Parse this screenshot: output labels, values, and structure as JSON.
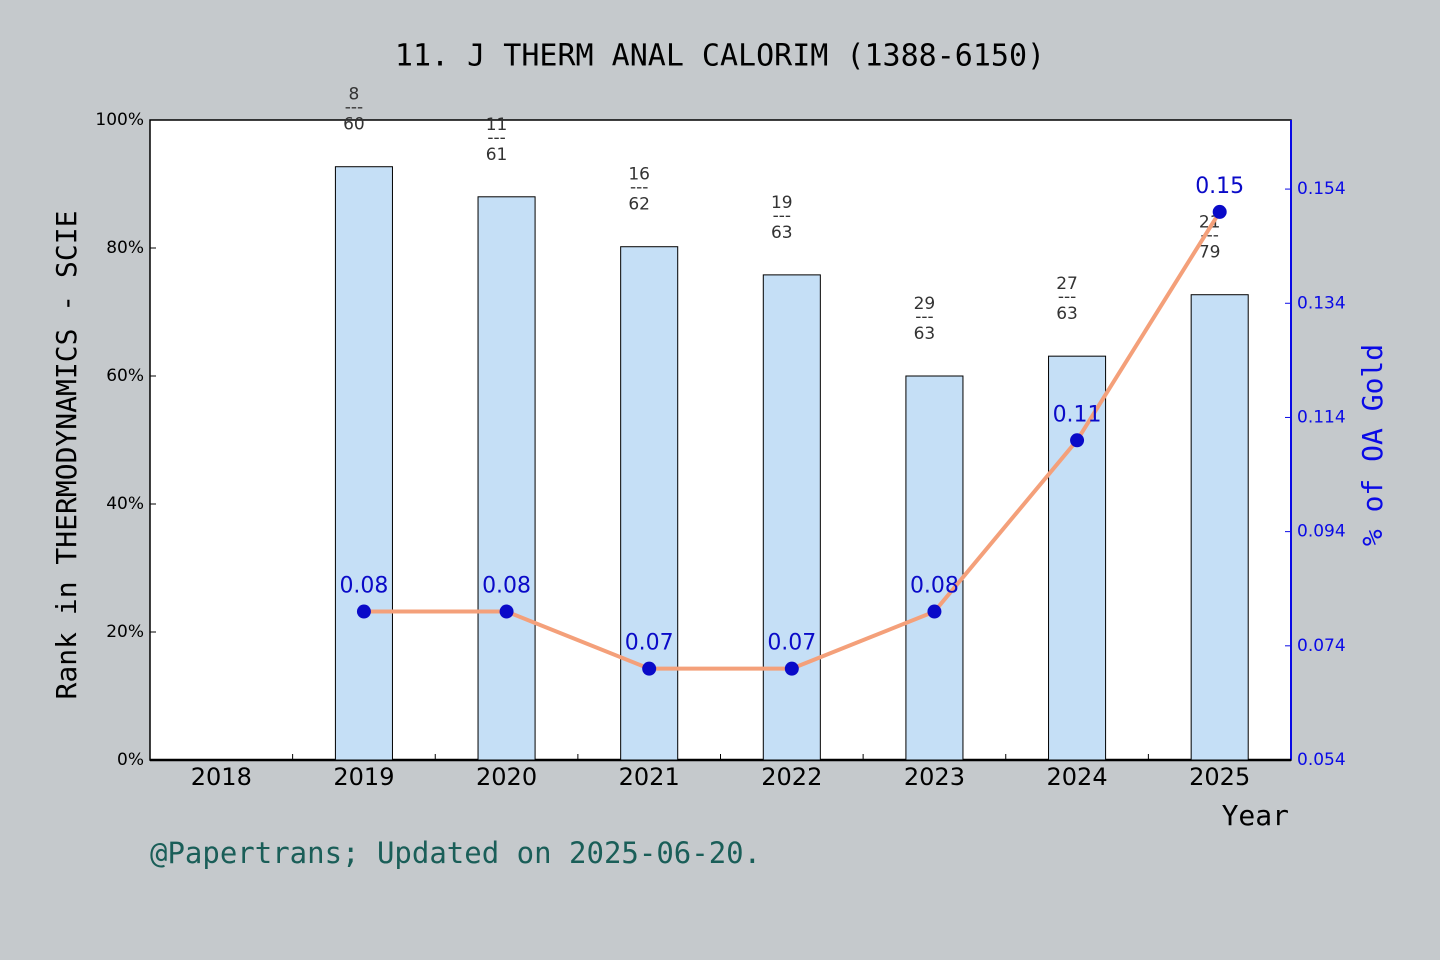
{
  "chart_data": {
    "type": "bar-line",
    "title": "11. J THERM ANAL CALORIM (1388-6150)",
    "y_label": "Rank in THERMODYNAMICS - SCIE",
    "y2_label": "% of OA Gold",
    "x_label": "Year",
    "footer": "@Papertrans; Updated on 2025-06-20.",
    "categories": [
      "2018",
      "2019",
      "2020",
      "2021",
      "2022",
      "2023",
      "2024",
      "2025"
    ],
    "series": [
      {
        "name": "Rank",
        "type": "bar",
        "color": "#c5dff6",
        "values": [
          null,
          92.7,
          88.0,
          80.2,
          75.8,
          60.0,
          63.1,
          72.7
        ],
        "bar_labels": [
          null,
          [
            "8",
            "---",
            "60"
          ],
          [
            "11",
            "---",
            "61"
          ],
          [
            "16",
            "---",
            "62"
          ],
          [
            "19",
            "---",
            "63"
          ],
          [
            "29",
            "---",
            "63"
          ],
          [
            "27",
            "---",
            "63"
          ],
          [
            "21",
            "---",
            "79"
          ]
        ]
      },
      {
        "name": "OA Gold",
        "type": "line",
        "axis": "y2",
        "color": "#f4a07a",
        "marker_color": "#0a0ac8",
        "values": [
          null,
          0.08,
          0.08,
          0.07,
          0.07,
          0.08,
          0.11,
          0.15
        ]
      }
    ],
    "ylim": [
      0,
      100
    ],
    "yticks": [
      {
        "value": 0,
        "label": "0%"
      },
      {
        "value": 20,
        "label": "20%"
      },
      {
        "value": 40,
        "label": "40%"
      },
      {
        "value": 60,
        "label": "60%"
      },
      {
        "value": 80,
        "label": "80%"
      },
      {
        "value": 100,
        "label": "100%"
      }
    ],
    "y2lim": [
      0.054,
      0.1661
    ],
    "y2ticks": [
      0.054,
      0.074,
      0.094,
      0.114,
      0.134,
      0.154
    ]
  }
}
